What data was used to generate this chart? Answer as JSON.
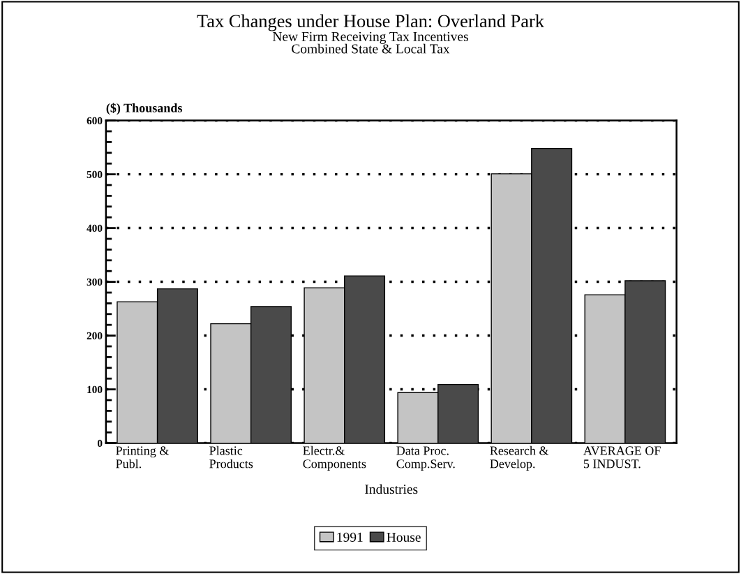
{
  "chart_data": {
    "type": "bar",
    "title": "Tax Changes under House Plan: Overland Park",
    "subtitle": "New Firm Receiving Tax Incentives\nCombined State & Local Tax",
    "xlabel": "Industries",
    "ylabel": "($) Thousands",
    "categories": [
      "Printing &\nPubl.",
      "Plastic\nProducts",
      "Electr.&\nComponents",
      "Data Proc.\nComp.Serv.",
      "Research &\nDevelop.",
      "AVERAGE OF\n5 INDUST."
    ],
    "series": [
      {
        "name": "1991",
        "color": "#c4c4c4",
        "values": [
          263,
          222,
          289,
          94,
          501,
          276
        ]
      },
      {
        "name": "House",
        "color": "#4a4a4a",
        "values": [
          287,
          254,
          311,
          109,
          548,
          302
        ]
      }
    ],
    "ylim": [
      0,
      600
    ],
    "yticks": [
      0,
      100,
      200,
      300,
      400,
      500,
      600
    ],
    "grid": "y",
    "legend": "bottom"
  }
}
